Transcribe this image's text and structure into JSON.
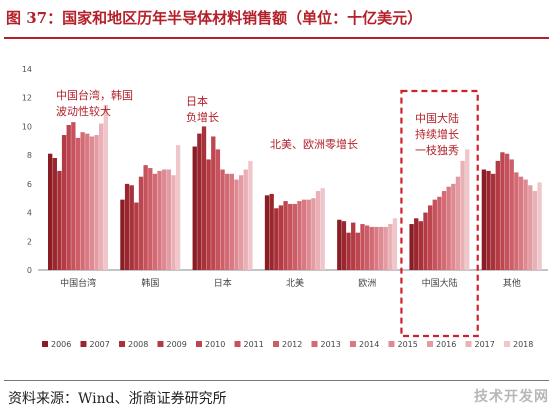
{
  "page": {
    "title": "图 37：国家和地区历年半导体材料销售额（单位：十亿美元）",
    "source": "资料来源：Wind、浙商证券研究所",
    "watermark": "技术开发网"
  },
  "chart_data": {
    "type": "bar",
    "title": "",
    "xlabel": "",
    "ylabel": "",
    "ylim": [
      0,
      14
    ],
    "yticks": [
      "0",
      "2",
      "4",
      "6",
      "8",
      "10",
      "12",
      "14"
    ],
    "grid": false,
    "legend_position": "bottom",
    "categories": [
      "中国台湾",
      "韩国",
      "日本",
      "北美",
      "欧洲",
      "中国大陆",
      "其他"
    ],
    "series": [
      {
        "name": "2006",
        "color": "#8a1c24",
        "values": [
          8.1,
          4.9,
          8.6,
          5.2,
          3.5,
          3.2,
          7.0
        ]
      },
      {
        "name": "2007",
        "color": "#9a2630",
        "values": [
          7.8,
          6.0,
          9.5,
          5.3,
          3.4,
          3.6,
          6.9
        ]
      },
      {
        "name": "2008",
        "color": "#a8313a",
        "values": [
          6.9,
          5.9,
          10.0,
          4.3,
          2.6,
          3.4,
          6.7
        ]
      },
      {
        "name": "2009",
        "color": "#b43a44",
        "values": [
          9.4,
          4.7,
          7.7,
          4.5,
          3.3,
          4.0,
          7.6
        ]
      },
      {
        "name": "2010",
        "color": "#bd4650",
        "values": [
          10.1,
          6.5,
          9.3,
          4.8,
          2.6,
          4.5,
          8.2
        ]
      },
      {
        "name": "2011",
        "color": "#c5525c",
        "values": [
          10.3,
          7.3,
          8.4,
          4.6,
          3.2,
          4.9,
          8.1
        ]
      },
      {
        "name": "2012",
        "color": "#cc5e68",
        "values": [
          9.2,
          7.1,
          7.0,
          4.6,
          3.1,
          5.1,
          7.7
        ]
      },
      {
        "name": "2013",
        "color": "#d36a74",
        "values": [
          9.6,
          6.7,
          6.7,
          4.8,
          3.0,
          5.5,
          6.8
        ]
      },
      {
        "name": "2014",
        "color": "#d97a83",
        "values": [
          9.5,
          6.9,
          6.7,
          4.9,
          3.0,
          5.8,
          6.5
        ]
      },
      {
        "name": "2015",
        "color": "#de8a92",
        "values": [
          9.3,
          7.0,
          6.3,
          4.9,
          3.0,
          6.0,
          6.3
        ]
      },
      {
        "name": "2016",
        "color": "#e39ca3",
        "values": [
          9.4,
          7.0,
          6.6,
          5.0,
          3.0,
          6.5,
          5.9
        ]
      },
      {
        "name": "2017",
        "color": "#e9b0b6",
        "values": [
          10.2,
          6.6,
          7.0,
          5.5,
          3.2,
          7.6,
          5.5
        ]
      },
      {
        "name": "2018",
        "color": "#efc6ca",
        "values": [
          11.5,
          8.7,
          7.6,
          5.7,
          3.6,
          8.4,
          6.1
        ]
      }
    ],
    "annotations": [
      {
        "lines": [
          "中国台湾，韩国",
          "波动性较大"
        ]
      },
      {
        "lines": [
          "日本",
          "负增长"
        ]
      },
      {
        "lines": [
          "北美、欧洲零增长"
        ]
      },
      {
        "lines": [
          "中国大陆",
          "持续增长",
          "一枝独秀"
        ]
      }
    ],
    "colors": {
      "annotation_text": "#b3202a",
      "highlight_box": "#d0202a",
      "axis": "#888888",
      "tick_text": "#555555"
    }
  }
}
